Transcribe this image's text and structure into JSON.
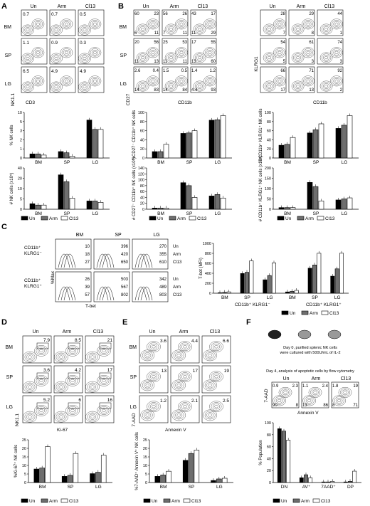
{
  "panels": [
    {
      "letter": "A",
      "cols": [
        "Un",
        "Arm",
        "Cl13"
      ],
      "rows": [
        "BM",
        "SP",
        "LG"
      ],
      "xaxis": "CD3",
      "yaxis": "NK1.1",
      "quads": [
        [
          "0.7",
          "0.7",
          "0.5"
        ],
        [
          "1.1",
          "0.9",
          "0.3"
        ],
        [
          "6.5",
          "4.9",
          "4.9"
        ]
      ]
    },
    {
      "letter": "B",
      "cols": [
        "Un",
        "Arm",
        "Cl13"
      ],
      "rows": [
        "BM",
        "SP",
        "LG"
      ],
      "xaxis": "CD11b",
      "yaxis": "CD27",
      "quads4": [
        [
          [
            "60",
            "23",
            "6",
            "11"
          ],
          [
            "56",
            "26",
            "7",
            "11"
          ],
          [
            "43",
            "17",
            "11",
            "29"
          ]
        ],
        [
          [
            "20",
            "56",
            "11",
            "13"
          ],
          [
            "25",
            "53",
            "11",
            "11"
          ],
          [
            "17",
            "55",
            "13",
            "60"
          ]
        ],
        [
          [
            "2.6",
            "0.4",
            "14",
            "83"
          ],
          [
            "1.5",
            "0.5",
            "14",
            "84"
          ],
          [
            "1.4",
            "1.2",
            "4.4",
            "93"
          ]
        ]
      ]
    },
    {
      "letter": "B2",
      "xaxis": "CD11b",
      "yaxis": "KLRG1",
      "quads2": [
        [
          [
            "28",
            "7"
          ],
          [
            "29",
            "8"
          ],
          [
            "44",
            "1"
          ]
        ],
        [
          [
            "54",
            "5"
          ],
          [
            "61",
            "3"
          ],
          [
            "74",
            "3"
          ]
        ],
        [
          [
            "66",
            "17"
          ],
          [
            "71",
            "13"
          ],
          [
            "92",
            "2"
          ]
        ]
      ]
    },
    {
      "letter": "C"
    },
    {
      "letter": "D"
    },
    {
      "letter": "E"
    },
    {
      "letter": "F"
    }
  ],
  "panelC": {
    "cols": [
      "BM",
      "SP",
      "LG"
    ],
    "rowlabels": [
      [
        "CD11b⁺",
        "KLRG1⁻"
      ],
      [
        "CD11b⁺",
        "KLRG1⁺"
      ]
    ],
    "xaxis": "T-bet",
    "yaxis": "%Max",
    "mfi_top": [
      [
        "10",
        "18",
        "27"
      ],
      [
        "396",
        "420",
        "650"
      ],
      [
        "270",
        "355",
        "610"
      ]
    ],
    "mfi_bot": [
      [
        "26",
        "39",
        "57"
      ],
      [
        "503",
        "567",
        "802"
      ],
      [
        "342",
        "489",
        "803"
      ]
    ],
    "mfi_names": [
      "Un",
      "Arm",
      "Cl13"
    ]
  },
  "panelD": {
    "cols": [
      "Un",
      "Arm",
      "Cl13"
    ],
    "rows": [
      "BM",
      "SP",
      "LG"
    ],
    "xaxis": "Ki-67",
    "yaxis": "NK1.1",
    "vals": [
      [
        "7.9",
        "8.5",
        "21"
      ],
      [
        "3.6",
        "4.2",
        "17"
      ],
      [
        "5.2",
        "6",
        "16"
      ]
    ]
  },
  "panelE": {
    "cols": [
      "Un",
      "Arm",
      "Cl13"
    ],
    "rows": [
      "BM",
      "SP",
      "LG"
    ],
    "xaxis": "Annexin V",
    "yaxis": "7-AAD",
    "vals": [
      [
        "3.6",
        "4.4",
        "6.6"
      ],
      [
        "13",
        "17",
        "19"
      ],
      [
        "1.2",
        "2.1",
        "2.5"
      ]
    ]
  },
  "panelF": {
    "cols": [
      "Un",
      "Arm",
      "Cl13"
    ],
    "text1": "Day 0, purified splenic NK cells",
    "text2": "were cultured with 500U/mL of IL-2",
    "text3": "Day 4, analysis of apoptotic cells by flow cytometry",
    "xaxis": "Annexin V",
    "yaxis": "7-AAD",
    "quads": [
      [
        "0.9",
        "2.3",
        "90",
        "8"
      ],
      [
        "1.1",
        "2.4",
        "13",
        "86"
      ],
      [
        "1.8",
        "19",
        "8",
        "71"
      ]
    ]
  },
  "legend": [
    "Un",
    "Arm",
    "Cl13"
  ],
  "colors": {
    "Un": "#000000",
    "Arm": "#6e6e6e",
    "Cl13": "#ffffff"
  },
  "chart_data": [
    {
      "type": "bar",
      "id": "A-pct",
      "ylabel": "% NK cells",
      "categories": [
        "BM",
        "SP",
        "LG"
      ],
      "ybreak": true,
      "yticks": [
        "0",
        "1",
        "2",
        "3",
        "5",
        "10"
      ],
      "series": [
        {
          "name": "Un",
          "values": [
            0.7,
            1.1,
            6.5
          ]
        },
        {
          "name": "Arm",
          "values": [
            0.7,
            0.9,
            4.9
          ]
        },
        {
          "name": "Cl13",
          "values": [
            0.5,
            0.3,
            4.9
          ]
        }
      ],
      "sig": [
        [
          "ns",
          "ns"
        ],
        [
          "*",
          "**",
          "ns"
        ],
        [
          "ns",
          "ns"
        ]
      ]
    },
    {
      "type": "bar",
      "id": "A-num",
      "ylabel": "# NK cells (x10⁵)",
      "categories": [
        "BM",
        "SP",
        "LG"
      ],
      "ybreak": true,
      "yticks": [
        "0",
        "5",
        "10",
        "20",
        "40"
      ],
      "series": [
        {
          "name": "Un",
          "values": [
            4,
            25,
            6
          ]
        },
        {
          "name": "Arm",
          "values": [
            3,
            20,
            6
          ]
        },
        {
          "name": "Cl13",
          "values": [
            3,
            8,
            5
          ]
        }
      ]
    },
    {
      "type": "bar",
      "id": "B-pct27",
      "ylabel": "%CD27⁻ CD11b⁺ NK cells",
      "categories": [
        "BM",
        "SP",
        "LG"
      ],
      "ylim": [
        0,
        100
      ],
      "yticks": [
        "0",
        "20",
        "40",
        "60",
        "80",
        "100"
      ],
      "series": [
        {
          "name": "Un",
          "values": [
            14,
            54,
            83
          ]
        },
        {
          "name": "Arm",
          "values": [
            14,
            55,
            84
          ]
        },
        {
          "name": "Cl13",
          "values": [
            30,
            60,
            93
          ]
        }
      ]
    },
    {
      "type": "bar",
      "id": "B-num27",
      "ylabel": "# CD27⁻ CD11b⁺ NK cells (x10⁵)",
      "categories": [
        "BM",
        "SP",
        "LG"
      ],
      "ylim": [
        0,
        140
      ],
      "yticks": [
        "0",
        "20",
        "40",
        "60",
        "80",
        "100",
        "120",
        "140"
      ],
      "series": [
        {
          "name": "Un",
          "values": [
            4,
            90,
            45
          ]
        },
        {
          "name": "Arm",
          "values": [
            4,
            80,
            50
          ]
        },
        {
          "name": "Cl13",
          "values": [
            4,
            40,
            38
          ]
        }
      ]
    },
    {
      "type": "bar",
      "id": "B-pctK",
      "ylabel": "%CD11b⁺ KLRG1⁺ NK cells",
      "categories": [
        "BM",
        "SP",
        "LG"
      ],
      "ylim": [
        0,
        100
      ],
      "yticks": [
        "0",
        "20",
        "40",
        "60",
        "80",
        "100"
      ],
      "series": [
        {
          "name": "Un",
          "values": [
            28,
            55,
            65
          ]
        },
        {
          "name": "Arm",
          "values": [
            30,
            62,
            72
          ]
        },
        {
          "name": "Cl13",
          "values": [
            45,
            75,
            93
          ]
        }
      ]
    },
    {
      "type": "bar",
      "id": "B-numK",
      "ylabel": "# CD11b⁺ KLRG1⁺ NK cells (x10⁵)",
      "categories": [
        "BM",
        "SP",
        "LG"
      ],
      "ylim": [
        0,
        200
      ],
      "yticks": [
        "0",
        "50",
        "100",
        "150",
        "200"
      ],
      "series": [
        {
          "name": "Un",
          "values": [
            8,
            130,
            45
          ]
        },
        {
          "name": "Arm",
          "values": [
            8,
            110,
            50
          ]
        },
        {
          "name": "Cl13",
          "values": [
            8,
            40,
            55
          ]
        }
      ]
    },
    {
      "type": "bar",
      "id": "C",
      "ylabel": "T-bet (MFI)",
      "categories": [
        "BM",
        "SP",
        "LG",
        "BM",
        "SP",
        "LG"
      ],
      "groups": [
        "CD11b⁺ KLRG1⁻",
        "CD11b⁺ KLRG1⁺"
      ],
      "ylim": [
        0,
        1000
      ],
      "yticks": [
        "0",
        "200",
        "400",
        "600",
        "800",
        "1000"
      ],
      "series": [
        {
          "name": "Un",
          "values": [
            10,
            396,
            270,
            26,
            503,
            342
          ]
        },
        {
          "name": "Arm",
          "values": [
            18,
            420,
            355,
            39,
            567,
            489
          ]
        },
        {
          "name": "Cl13",
          "values": [
            27,
            650,
            610,
            57,
            802,
            803
          ]
        }
      ]
    },
    {
      "type": "bar",
      "id": "D",
      "ylabel": "%Ki-67⁺ NK cells",
      "categories": [
        "BM",
        "SP",
        "LG"
      ],
      "ylim": [
        0,
        25
      ],
      "yticks": [
        "0",
        "5",
        "10",
        "15",
        "20",
        "25"
      ],
      "series": [
        {
          "name": "Un",
          "values": [
            7.9,
            3.6,
            5.2
          ]
        },
        {
          "name": "Arm",
          "values": [
            8.5,
            4.2,
            6
          ]
        },
        {
          "name": "Cl13",
          "values": [
            21,
            17,
            16
          ]
        }
      ]
    },
    {
      "type": "bar",
      "id": "E",
      "ylabel": "%7-AAD⁺ Annexin V⁺ NK cells",
      "categories": [
        "BM",
        "SP",
        "LG"
      ],
      "ylim": [
        0,
        25
      ],
      "yticks": [
        "0",
        "5",
        "10",
        "15",
        "20",
        "25"
      ],
      "series": [
        {
          "name": "Un",
          "values": [
            3.6,
            13,
            1.2
          ]
        },
        {
          "name": "Arm",
          "values": [
            4.4,
            17,
            2.1
          ]
        },
        {
          "name": "Cl13",
          "values": [
            6.6,
            19,
            2.5
          ]
        }
      ]
    },
    {
      "type": "bar",
      "id": "F",
      "ylabel": "% Population",
      "categories": [
        "DN",
        "AV⁺",
        "7AAD⁺",
        "DP"
      ],
      "ylim": [
        0,
        100
      ],
      "yticks": [
        "0",
        "20",
        "40",
        "60",
        "80",
        "100"
      ],
      "series": [
        {
          "name": "Un",
          "values": [
            90,
            8,
            1,
            1
          ]
        },
        {
          "name": "Arm",
          "values": [
            86,
            13,
            1,
            2
          ]
        },
        {
          "name": "Cl13",
          "values": [
            71,
            8,
            2,
            19
          ]
        }
      ]
    }
  ]
}
